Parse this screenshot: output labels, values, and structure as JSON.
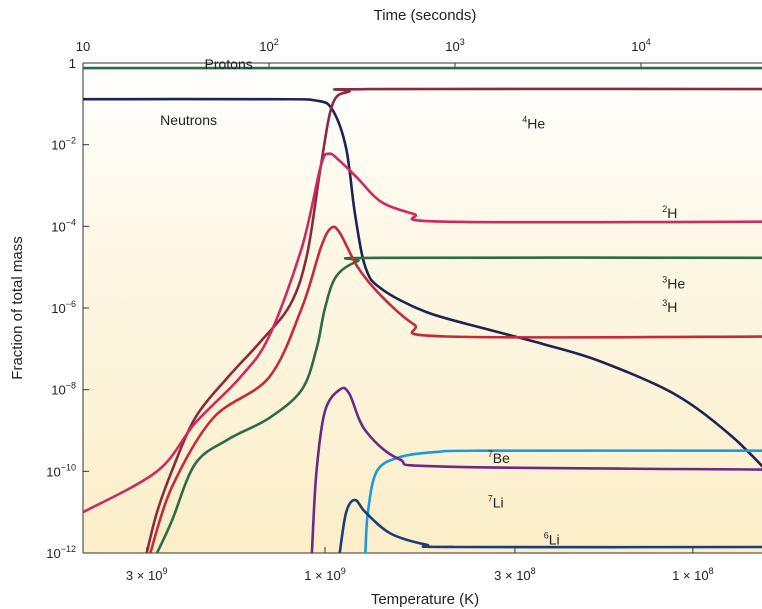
{
  "chart_data": {
    "type": "line",
    "top_axis_title": "Time (seconds)",
    "xlabel": "Temperature (K)",
    "ylabel": "Fraction of total mass",
    "y_scale": "log",
    "ylim": [
      1e-12,
      1
    ],
    "x_scale": "log",
    "xlim_seconds": [
      10,
      50000
    ],
    "top_ticks": [
      {
        "label": "10",
        "value": 10,
        "base": "10",
        "exp": ""
      },
      {
        "label": "10^2",
        "value": 100,
        "base": "10",
        "exp": "2"
      },
      {
        "label": "10^3",
        "value": 1000,
        "base": "10",
        "exp": "3"
      },
      {
        "label": "10^4",
        "value": 10000,
        "base": "10",
        "exp": "4"
      }
    ],
    "bottom_ticks": [
      {
        "label": "3 × 10^9",
        "time": 22,
        "base": "3 × 10",
        "exp": "9"
      },
      {
        "label": "1 × 10^9",
        "time": 200,
        "base": "1 × 10",
        "exp": "9"
      },
      {
        "label": "3 × 10^8",
        "time": 2100,
        "base": "3 × 10",
        "exp": "8"
      },
      {
        "label": "1 × 10^8",
        "time": 19000,
        "base": "1 × 10",
        "exp": "8"
      }
    ],
    "y_ticks": [
      {
        "value": 1,
        "base": "1",
        "exp": ""
      },
      {
        "value": 0.01,
        "base": "10",
        "exp": "−2"
      },
      {
        "value": 0.0001,
        "base": "10",
        "exp": "−4"
      },
      {
        "value": 1e-06,
        "base": "10",
        "exp": "−6"
      },
      {
        "value": 1e-08,
        "base": "10",
        "exp": "−8"
      },
      {
        "value": 1e-10,
        "base": "10",
        "exp": "−10"
      },
      {
        "value": 1e-12,
        "base": "10",
        "exp": "−12"
      }
    ],
    "series": [
      {
        "name": "Protons",
        "sup": "",
        "base": "Protons",
        "color": "#2e6b45",
        "label_time": 45,
        "label_y": 0.72,
        "points": [
          [
            10,
            0.75
          ],
          [
            50000,
            0.75
          ]
        ]
      },
      {
        "name": "Neutrons",
        "sup": "",
        "base": "Neutrons",
        "color": "#1c2454",
        "label_time": 26,
        "label_y": 0.03,
        "points": [
          [
            10,
            0.13
          ],
          [
            100,
            0.13
          ],
          [
            180,
            0.12
          ],
          [
            220,
            0.07
          ],
          [
            260,
            0.008
          ],
          [
            290,
            0.0002
          ],
          [
            330,
            1e-05
          ],
          [
            400,
            3e-06
          ],
          [
            700,
            8e-07
          ],
          [
            1500,
            3e-07
          ],
          [
            3000,
            1.3e-07
          ],
          [
            6000,
            5e-08
          ],
          [
            15000,
            8e-09
          ],
          [
            30000,
            8e-10
          ],
          [
            50000,
            8e-11
          ]
        ]
      },
      {
        "name": "4He",
        "sup": "4",
        "base": "He",
        "color": "#8a2a3e",
        "label_time": 2300,
        "label_y": 0.025,
        "points": [
          [
            22,
            1e-12
          ],
          [
            25,
            1e-11
          ],
          [
            30,
            1e-10
          ],
          [
            40,
            2e-09
          ],
          [
            60,
            2e-08
          ],
          [
            90,
            1.5e-07
          ],
          [
            130,
            1.2e-06
          ],
          [
            160,
            2e-05
          ],
          [
            190,
            0.003
          ],
          [
            220,
            0.1
          ],
          [
            270,
            0.2
          ],
          [
            350,
            0.23
          ],
          [
            50000,
            0.23
          ]
        ]
      },
      {
        "name": "2H",
        "sup": "2",
        "base": "H",
        "color": "#cc2a62",
        "label_time": 13000,
        "label_y": 0.00016,
        "points": [
          [
            10,
            1e-11
          ],
          [
            25,
            1e-10
          ],
          [
            40,
            1.5e-09
          ],
          [
            70,
            2e-08
          ],
          [
            100,
            2e-07
          ],
          [
            150,
            3e-05
          ],
          [
            190,
            0.003
          ],
          [
            210,
            0.006
          ],
          [
            240,
            0.004
          ],
          [
            300,
            0.0015
          ],
          [
            400,
            0.0004
          ],
          [
            600,
            0.0002
          ],
          [
            900,
            0.00013
          ],
          [
            50000,
            0.00013
          ]
        ]
      },
      {
        "name": "3He",
        "sup": "3",
        "base": "He",
        "color": "#2e6b45",
        "label_time": 13000,
        "label_y": 3e-06,
        "points": [
          [
            25,
            1e-12
          ],
          [
            30,
            6e-12
          ],
          [
            40,
            1.5e-10
          ],
          [
            60,
            6e-10
          ],
          [
            100,
            2e-09
          ],
          [
            150,
            1e-08
          ],
          [
            180,
            1e-07
          ],
          [
            200,
            1e-06
          ],
          [
            230,
            6e-06
          ],
          [
            300,
            1.4e-05
          ],
          [
            400,
            1.7e-05
          ],
          [
            50000,
            1.7e-05
          ]
        ]
      },
      {
        "name": "3H",
        "sup": "3",
        "base": "H",
        "color": "#c32a3c",
        "label_time": 13000,
        "label_y": 8e-07,
        "points": [
          [
            23,
            1e-12
          ],
          [
            30,
            4e-11
          ],
          [
            50,
            2e-09
          ],
          [
            100,
            2e-08
          ],
          [
            150,
            1e-06
          ],
          [
            190,
            3e-05
          ],
          [
            215,
            9e-05
          ],
          [
            240,
            7e-05
          ],
          [
            300,
            1e-05
          ],
          [
            400,
            2e-06
          ],
          [
            600,
            4e-07
          ],
          [
            900,
            2e-07
          ],
          [
            50000,
            2e-07
          ]
        ]
      },
      {
        "name": "7Be",
        "sup": "7",
        "base": "Be",
        "color": "#1a9ae0",
        "label_time": 1500,
        "label_y": 1.6e-10,
        "points": [
          [
            330,
            1e-12
          ],
          [
            340,
            1e-11
          ],
          [
            380,
            1e-10
          ],
          [
            500,
            2.2e-10
          ],
          [
            800,
            3e-10
          ],
          [
            1500,
            3.2e-10
          ],
          [
            50000,
            3.2e-10
          ]
        ]
      },
      {
        "name": "7Li",
        "sup": "7",
        "base": "Li",
        "color": "#6b2a8a",
        "label_time": 1500,
        "label_y": 1.3e-11,
        "points": [
          [
            170,
            1e-12
          ],
          [
            180,
            1e-10
          ],
          [
            200,
            3e-09
          ],
          [
            240,
            1e-08
          ],
          [
            270,
            8e-09
          ],
          [
            330,
            1e-09
          ],
          [
            500,
            2e-10
          ],
          [
            900,
            1.3e-10
          ],
          [
            50000,
            1.1e-10
          ]
        ]
      },
      {
        "name": "6Li",
        "sup": "6",
        "base": "Li",
        "color": "#1d3c7a",
        "label_time": 3000,
        "label_y": 1.6e-12,
        "points": [
          [
            240,
            1e-12
          ],
          [
            260,
            1e-11
          ],
          [
            290,
            2e-11
          ],
          [
            330,
            1e-11
          ],
          [
            450,
            3e-12
          ],
          [
            700,
            1.6e-12
          ],
          [
            1000,
            1.4e-12
          ],
          [
            50000,
            1.4e-12
          ]
        ]
      }
    ]
  }
}
